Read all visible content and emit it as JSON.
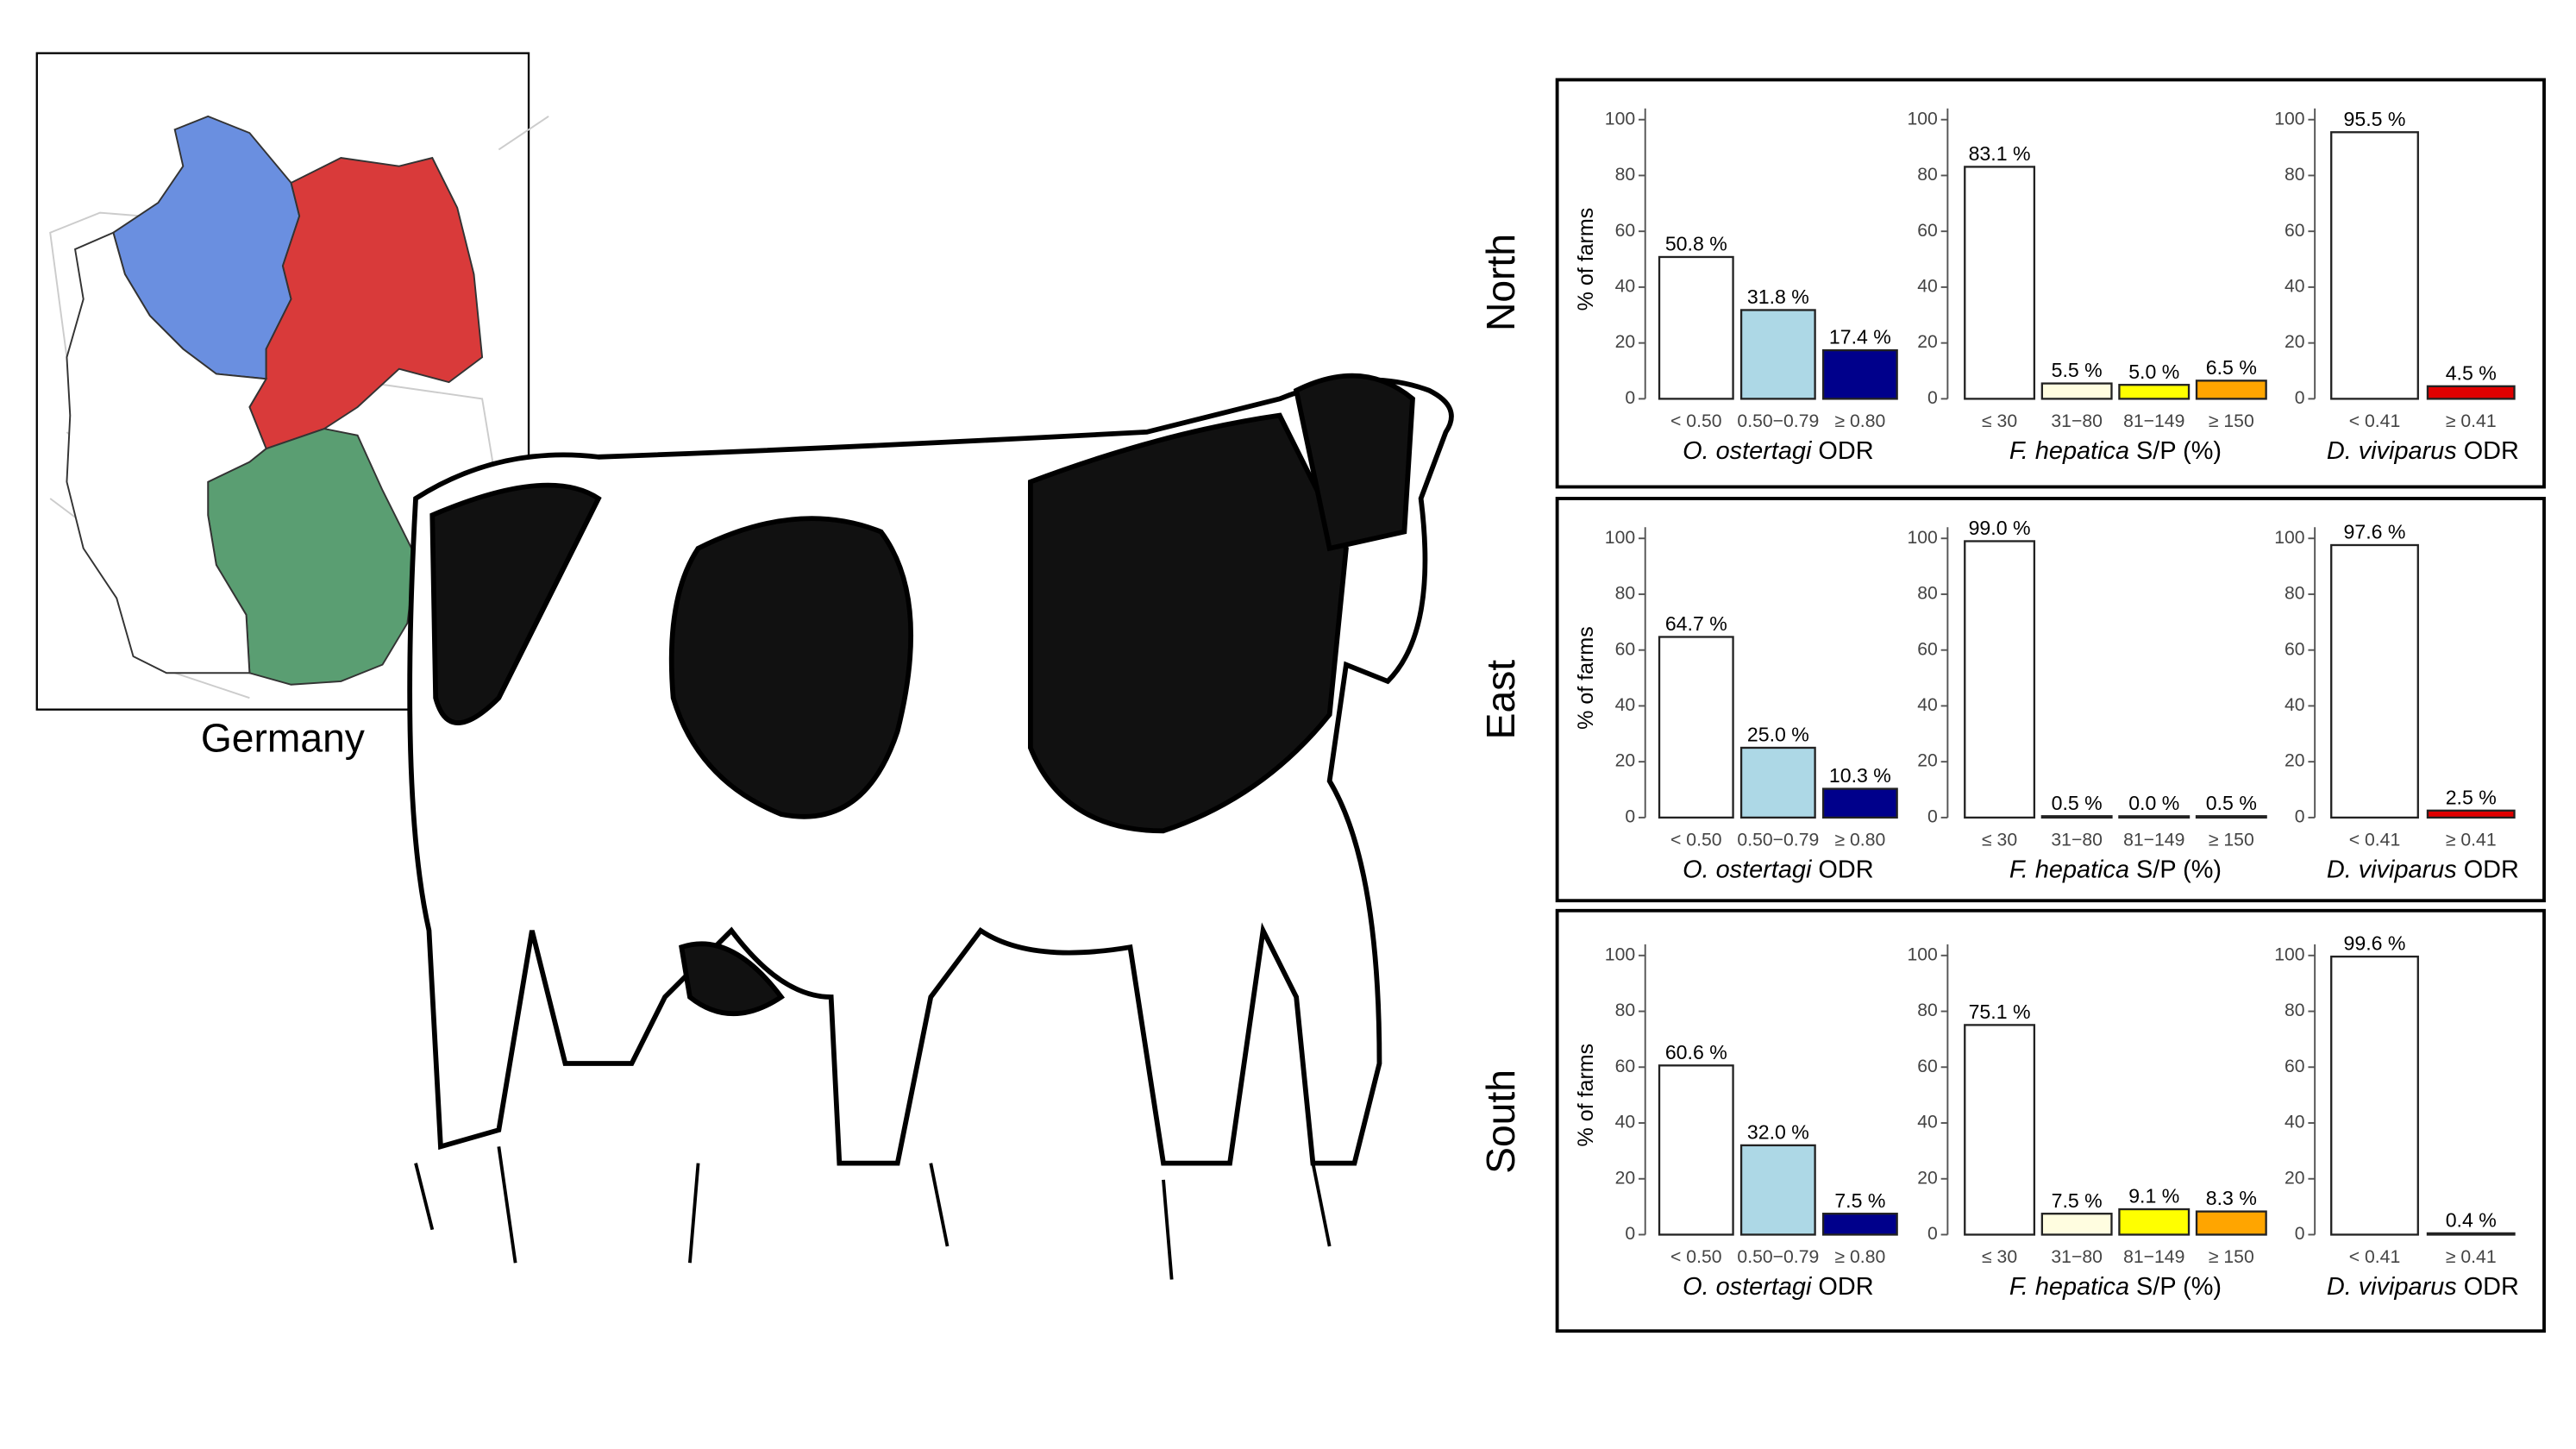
{
  "map_label": "Germany",
  "regions": [
    "North",
    "East",
    "South"
  ],
  "chart_data": [
    {
      "type": "bar",
      "ylabel": "% of farms",
      "xlabel": [
        "O. ostertagi",
        "ODR"
      ],
      "categories": [
        "< 0.50",
        "0.50−0.79",
        "≥ 0.80"
      ],
      "values": [
        50.8,
        31.8,
        17.4
      ],
      "value_labels": [
        "50.8 %",
        "31.8 %",
        "17.4 %"
      ],
      "colors": [
        "#ffffff",
        "#add8e6",
        "#00008b"
      ],
      "ylim": [
        0,
        104
      ],
      "yticks": [
        0,
        20,
        40,
        60,
        80,
        100
      ]
    },
    {
      "type": "bar",
      "xlabel": [
        "F. hepatica",
        "S/P (%)"
      ],
      "categories": [
        "≤ 30",
        "31−80",
        "81−149",
        "≥ 150"
      ],
      "values": [
        83.1,
        5.5,
        5.0,
        6.5
      ],
      "value_labels": [
        "83.1 %",
        "5.5 %",
        "5.0 %",
        "6.5 %"
      ],
      "colors": [
        "#ffffff",
        "#fffde0",
        "#ffff00",
        "#ffa500"
      ],
      "ylim": [
        0,
        104
      ],
      "yticks": [
        0,
        20,
        40,
        60,
        80,
        100
      ]
    },
    {
      "type": "bar",
      "xlabel": [
        "D. viviparus",
        "ODR"
      ],
      "categories": [
        "< 0.41",
        "≥ 0.41"
      ],
      "values": [
        95.5,
        4.5
      ],
      "value_labels": [
        "95.5 %",
        "4.5 %"
      ],
      "colors": [
        "#ffffff",
        "#e00000"
      ],
      "ylim": [
        0,
        104
      ],
      "yticks": [
        0,
        20,
        40,
        60,
        80,
        100
      ]
    },
    {
      "type": "bar",
      "ylabel": "% of farms",
      "xlabel": [
        "O. ostertagi",
        "ODR"
      ],
      "categories": [
        "< 0.50",
        "0.50−0.79",
        "≥ 0.80"
      ],
      "values": [
        64.7,
        25.0,
        10.3
      ],
      "value_labels": [
        "64.7 %",
        "25.0 %",
        "10.3 %"
      ],
      "colors": [
        "#ffffff",
        "#add8e6",
        "#00008b"
      ],
      "ylim": [
        0,
        104
      ],
      "yticks": [
        0,
        20,
        40,
        60,
        80,
        100
      ]
    },
    {
      "type": "bar",
      "xlabel": [
        "F. hepatica",
        "S/P (%)"
      ],
      "categories": [
        "≤ 30",
        "31−80",
        "81−149",
        "≥ 150"
      ],
      "values": [
        99.0,
        0.5,
        0.0,
        0.5
      ],
      "value_labels": [
        "99.0 %",
        "0.5 %",
        "0.0 %",
        "0.5 %"
      ],
      "colors": [
        "#ffffff",
        "#fffde0",
        "#ffff00",
        "#ffa500"
      ],
      "ylim": [
        0,
        104
      ],
      "yticks": [
        0,
        20,
        40,
        60,
        80,
        100
      ]
    },
    {
      "type": "bar",
      "xlabel": [
        "D. viviparus",
        "ODR"
      ],
      "categories": [
        "< 0.41",
        "≥ 0.41"
      ],
      "values": [
        97.6,
        2.5
      ],
      "value_labels": [
        "97.6 %",
        "2.5 %"
      ],
      "colors": [
        "#ffffff",
        "#e00000"
      ],
      "ylim": [
        0,
        104
      ],
      "yticks": [
        0,
        20,
        40,
        60,
        80,
        100
      ]
    },
    {
      "type": "bar",
      "ylabel": "% of farms",
      "xlabel": [
        "O. ostertagi",
        "ODR"
      ],
      "categories": [
        "< 0.50",
        "0.50−0.79",
        "≥ 0.80"
      ],
      "values": [
        60.6,
        32.0,
        7.5
      ],
      "value_labels": [
        "60.6 %",
        "32.0 %",
        "7.5 %"
      ],
      "colors": [
        "#ffffff",
        "#add8e6",
        "#00008b"
      ],
      "ylim": [
        0,
        104
      ],
      "yticks": [
        0,
        20,
        40,
        60,
        80,
        100
      ]
    },
    {
      "type": "bar",
      "xlabel": [
        "F. hepatica",
        "S/P (%)"
      ],
      "categories": [
        "≤ 30",
        "31−80",
        "81−149",
        "≥ 150"
      ],
      "values": [
        75.1,
        7.5,
        9.1,
        8.3
      ],
      "value_labels": [
        "75.1 %",
        "7.5 %",
        "9.1 %",
        "8.3 %"
      ],
      "colors": [
        "#ffffff",
        "#fffde0",
        "#ffff00",
        "#ffa500"
      ],
      "ylim": [
        0,
        104
      ],
      "yticks": [
        0,
        20,
        40,
        60,
        80,
        100
      ]
    },
    {
      "type": "bar",
      "xlabel": [
        "D. viviparus",
        "ODR"
      ],
      "categories": [
        "< 0.41",
        "≥ 0.41"
      ],
      "values": [
        99.6,
        0.4
      ],
      "value_labels": [
        "99.6 %",
        "0.4 %"
      ],
      "colors": [
        "#ffffff",
        "#e00000"
      ],
      "ylim": [
        0,
        104
      ],
      "yticks": [
        0,
        20,
        40,
        60,
        80,
        100
      ]
    }
  ]
}
